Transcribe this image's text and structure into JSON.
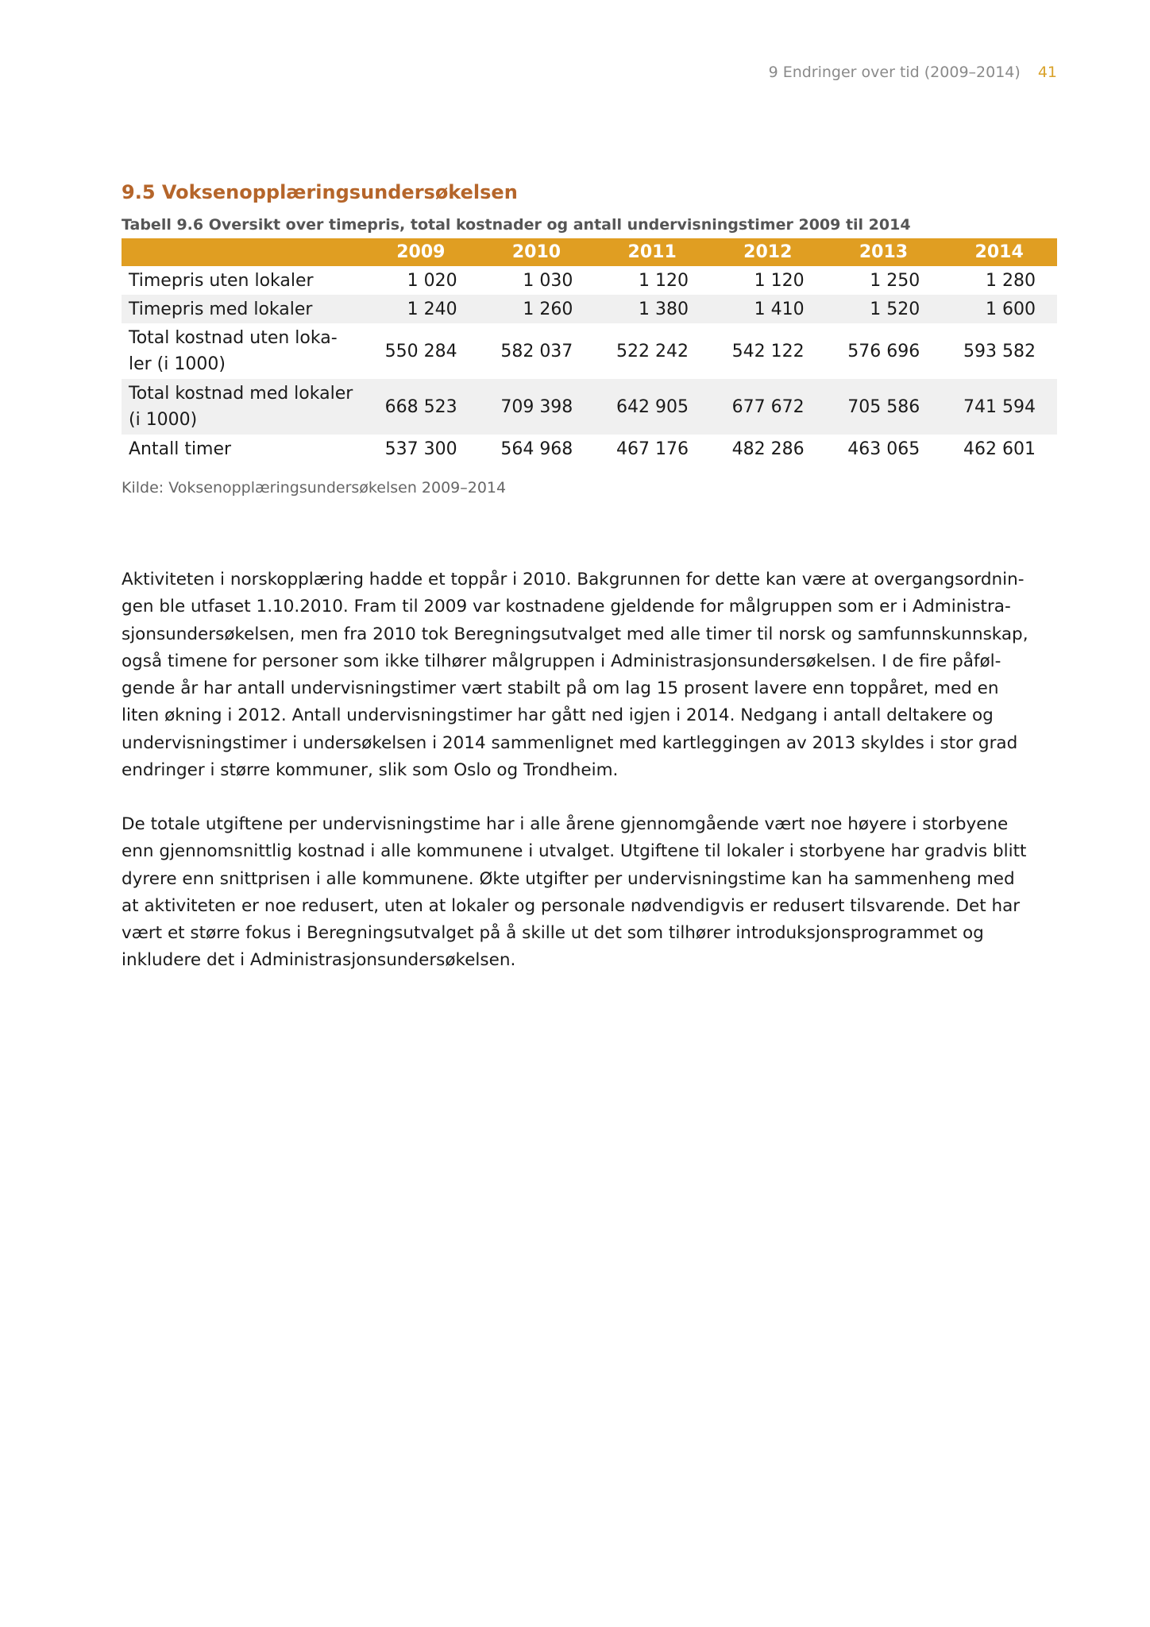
{
  "header": {
    "running_title": "9 Endringer over tid (2009–2014)",
    "page_number": "41"
  },
  "section": {
    "title": "9.5 Voksenopplæringsundersøkelsen"
  },
  "table": {
    "caption": "Tabell 9.6 Oversikt over timepris, total kostnader og antall undervisningstimer 2009 til 2014",
    "columns": [
      "",
      "2009",
      "2010",
      "2011",
      "2012",
      "2013",
      "2014"
    ],
    "rows": [
      {
        "label": [
          "Timepris uten lokaler"
        ],
        "values": [
          "1 020",
          "1 030",
          "1 120",
          "1 120",
          "1 250",
          "1 280"
        ]
      },
      {
        "label": [
          "Timepris med lokaler"
        ],
        "values": [
          "1 240",
          "1 260",
          "1 380",
          "1 410",
          "1 520",
          "1 600"
        ]
      },
      {
        "label": [
          "Total kostnad uten loka-",
          "ler (i 1000)"
        ],
        "values": [
          "550 284",
          "582 037",
          "522 242",
          "542 122",
          "576 696",
          "593 582"
        ]
      },
      {
        "label": [
          "Total kostnad med lokaler",
          "(i 1000)"
        ],
        "values": [
          "668 523",
          "709 398",
          "642 905",
          "677 672",
          "705 586",
          "741 594"
        ]
      },
      {
        "label": [
          "Antall timer"
        ],
        "values": [
          "537 300",
          "564 968",
          "467 176",
          "482 286",
          "463 065",
          "462 601"
        ]
      }
    ],
    "source": "Kilde: Voksenopplæringsundersøkelsen 2009–2014"
  },
  "paragraphs": [
    [
      "Aktiviteten i norskopplæring hadde et toppår i 2010. Bakgrunnen for dette kan være at overgangsordnin-",
      "gen ble utfaset 1.10.2010. Fram til 2009 var kostnadene gjeldende for målgruppen som er i Administra-",
      "sjonsundersøkelsen, men fra 2010 tok Beregningsutvalget med alle timer til norsk og samfunnskunnskap,",
      "også timene for personer som ikke tilhører målgruppen i Administrasjonsundersøkelsen. I de fire påføl-",
      "gende år har antall undervisningstimer vært stabilt på om lag 15 prosent lavere enn toppåret, med en",
      "liten økning i 2012. Antall undervisningstimer har gått ned igjen i 2014. Nedgang i antall deltakere og",
      "undervisningstimer i undersøkelsen i 2014 sammenlignet med kartleggingen av 2013 skyldes i stor grad",
      "endringer i større kommuner, slik som Oslo og Trondheim."
    ],
    [
      "De totale utgiftene per undervisningstime har i alle årene gjennomgående vært noe høyere i storbyene",
      "enn gjennomsnittlig kostnad i alle kommunene i utvalget. Utgiftene til lokaler i storbyene har gradvis blitt",
      "dyrere enn snittprisen i alle kommunene. Økte utgifter per undervisningstime kan ha sammenheng med",
      "at aktiviteten er noe redusert, uten at lokaler og personale nødvendigvis er redusert tilsvarende. Det har",
      "vært et større fokus i Beregningsutvalget på å skille ut det som tilhører introduksjonsprogrammet og",
      "inkludere det i Administrasjonsundersøkelsen."
    ]
  ]
}
